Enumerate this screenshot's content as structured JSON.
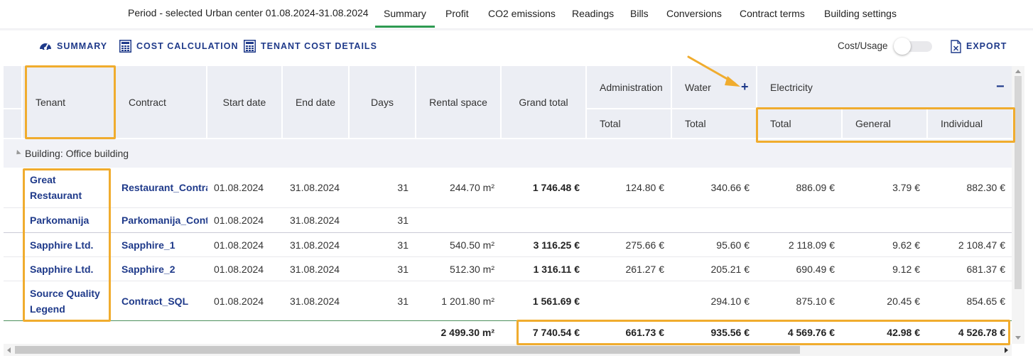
{
  "nav": {
    "period": "Period - selected Urban center 01.08.2024-31.08.2024",
    "tabs": [
      "Summary",
      "Profit",
      "CO2 emissions",
      "Readings",
      "Bills",
      "Conversions",
      "Contract terms",
      "Building settings"
    ],
    "active_tab": "Summary"
  },
  "toolbar": {
    "summary": "SUMMARY",
    "cost_calculation": "COST CALCULATION",
    "tenant_cost_details": "TENANT COST DETAILS",
    "cost_usage": "Cost/Usage",
    "export": "EXPORT"
  },
  "table": {
    "headers": {
      "tenant": "Tenant",
      "contract": "Contract",
      "start_date": "Start date",
      "end_date": "End date",
      "days": "Days",
      "rental_space": "Rental space",
      "grand_total": "Grand total",
      "administration": "Administration",
      "water": "Water",
      "electricity": "Electricity",
      "admin_total": "Total",
      "water_total": "Total",
      "elec_total": "Total",
      "elec_general": "General",
      "elec_individual": "Individual",
      "water_expand": "+",
      "electricity_collapse": "−"
    },
    "group": "Building: Office building",
    "rows": [
      {
        "tenant": "Great Restaurant",
        "contract": "Restaurant_Contra",
        "start": "01.08.2024",
        "end": "31.08.2024",
        "days": "31",
        "space": "244.70 m²",
        "grand": "1 746.48 €",
        "admin": "124.80 €",
        "water": "340.66 €",
        "elec_total": "886.09 €",
        "elec_general": "3.79 €",
        "elec_individual": "882.30 €"
      },
      {
        "tenant": "Parkomanija",
        "contract": "Parkomanija_Cont",
        "start": "01.08.2024",
        "end": "31.08.2024",
        "days": "31",
        "space": "",
        "grand": "",
        "admin": "",
        "water": "",
        "elec_total": "",
        "elec_general": "",
        "elec_individual": ""
      },
      {
        "tenant": "Sapphire Ltd.",
        "contract": "Sapphire_1",
        "start": "01.08.2024",
        "end": "31.08.2024",
        "days": "31",
        "space": "540.50 m²",
        "grand": "3 116.25 €",
        "admin": "275.66 €",
        "water": "95.60 €",
        "elec_total": "2 118.09 €",
        "elec_general": "9.62 €",
        "elec_individual": "2 108.47 €"
      },
      {
        "tenant": "Sapphire Ltd.",
        "contract": "Sapphire_2",
        "start": "01.08.2024",
        "end": "31.08.2024",
        "days": "31",
        "space": "512.30 m²",
        "grand": "1 316.11 €",
        "admin": "261.27 €",
        "water": "205.21 €",
        "elec_total": "690.49 €",
        "elec_general": "9.12 €",
        "elec_individual": "681.37 €"
      },
      {
        "tenant": "Source Quality Legend",
        "contract": "Contract_SQL",
        "start": "01.08.2024",
        "end": "31.08.2024",
        "days": "31",
        "space": "1 201.80 m²",
        "grand": "1 561.69 €",
        "admin": "",
        "water": "294.10 €",
        "elec_total": "875.10 €",
        "elec_general": "20.45 €",
        "elec_individual": "854.65 €"
      }
    ],
    "totals": {
      "space": "2 499.30 m²",
      "grand": "7 740.54 €",
      "admin": "661.73 €",
      "water": "935.56 €",
      "elec_total": "4 569.76 €",
      "elec_general": "42.98 €",
      "elec_individual": "4 526.78 €"
    }
  },
  "colors": {
    "accent_green": "#2e9a52",
    "link_blue": "#1f3a8a",
    "header_bg": "#eceef4",
    "highlight": "#f0ac2e"
  }
}
